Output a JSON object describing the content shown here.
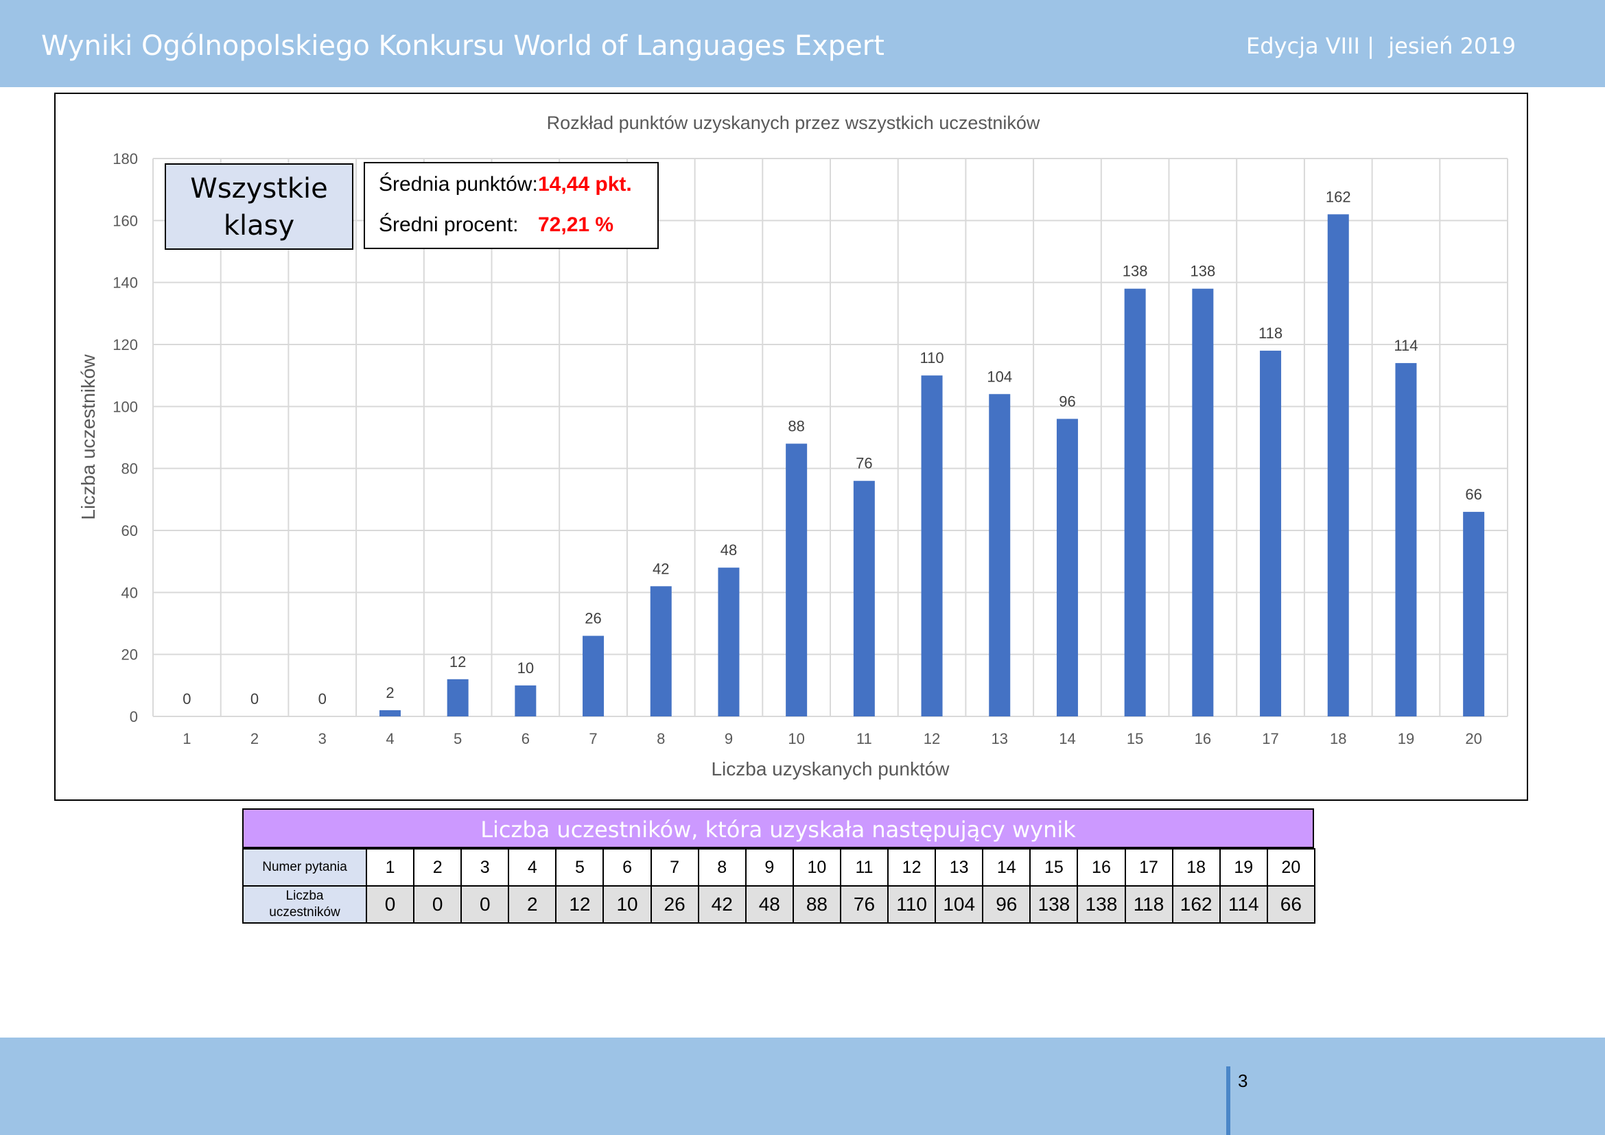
{
  "header": {
    "title": "Wyniki Ogólnopolskiego Konkursu World of Languages Expert",
    "edition": "Edycja VIII |  jesień 2019"
  },
  "chart_data": {
    "type": "bar",
    "title": "Rozkład punktów uzyskanych przez wszystkich uczestników",
    "xlabel": "Liczba uzyskanych punktów",
    "ylabel": "Liczba uczestników",
    "categories": [
      "1",
      "2",
      "3",
      "4",
      "5",
      "6",
      "7",
      "8",
      "9",
      "10",
      "11",
      "12",
      "13",
      "14",
      "15",
      "16",
      "17",
      "18",
      "19",
      "20"
    ],
    "values": [
      0,
      0,
      0,
      2,
      12,
      10,
      26,
      42,
      48,
      88,
      76,
      110,
      104,
      96,
      138,
      138,
      118,
      162,
      114,
      66
    ],
    "ylim": [
      0,
      180
    ],
    "yticks": [
      0,
      20,
      40,
      60,
      80,
      100,
      120,
      140,
      160,
      180
    ],
    "grid": true,
    "bar_color": "#4472c4"
  },
  "info": {
    "classes_line1": "Wszystkie",
    "classes_line2": "klasy",
    "avg_points_label": "Średnia punktów:",
    "avg_points_value": "14,44 pkt.",
    "avg_percent_label": "Średni procent:",
    "avg_percent_value": "72,21 %"
  },
  "table": {
    "title": "Liczba uczestników, która uzyskała następujący wynik",
    "row1_label": "Numer pytania",
    "row2_label_line1": "Liczba",
    "row2_label_line2": "uczestników",
    "numbers": [
      "1",
      "2",
      "3",
      "4",
      "5",
      "6",
      "7",
      "8",
      "9",
      "10",
      "11",
      "12",
      "13",
      "14",
      "15",
      "16",
      "17",
      "18",
      "19",
      "20"
    ],
    "counts": [
      "0",
      "0",
      "0",
      "2",
      "12",
      "10",
      "26",
      "42",
      "48",
      "88",
      "76",
      "110",
      "104",
      "96",
      "138",
      "138",
      "118",
      "162",
      "114",
      "66"
    ]
  },
  "footer": {
    "page_number": "3"
  }
}
